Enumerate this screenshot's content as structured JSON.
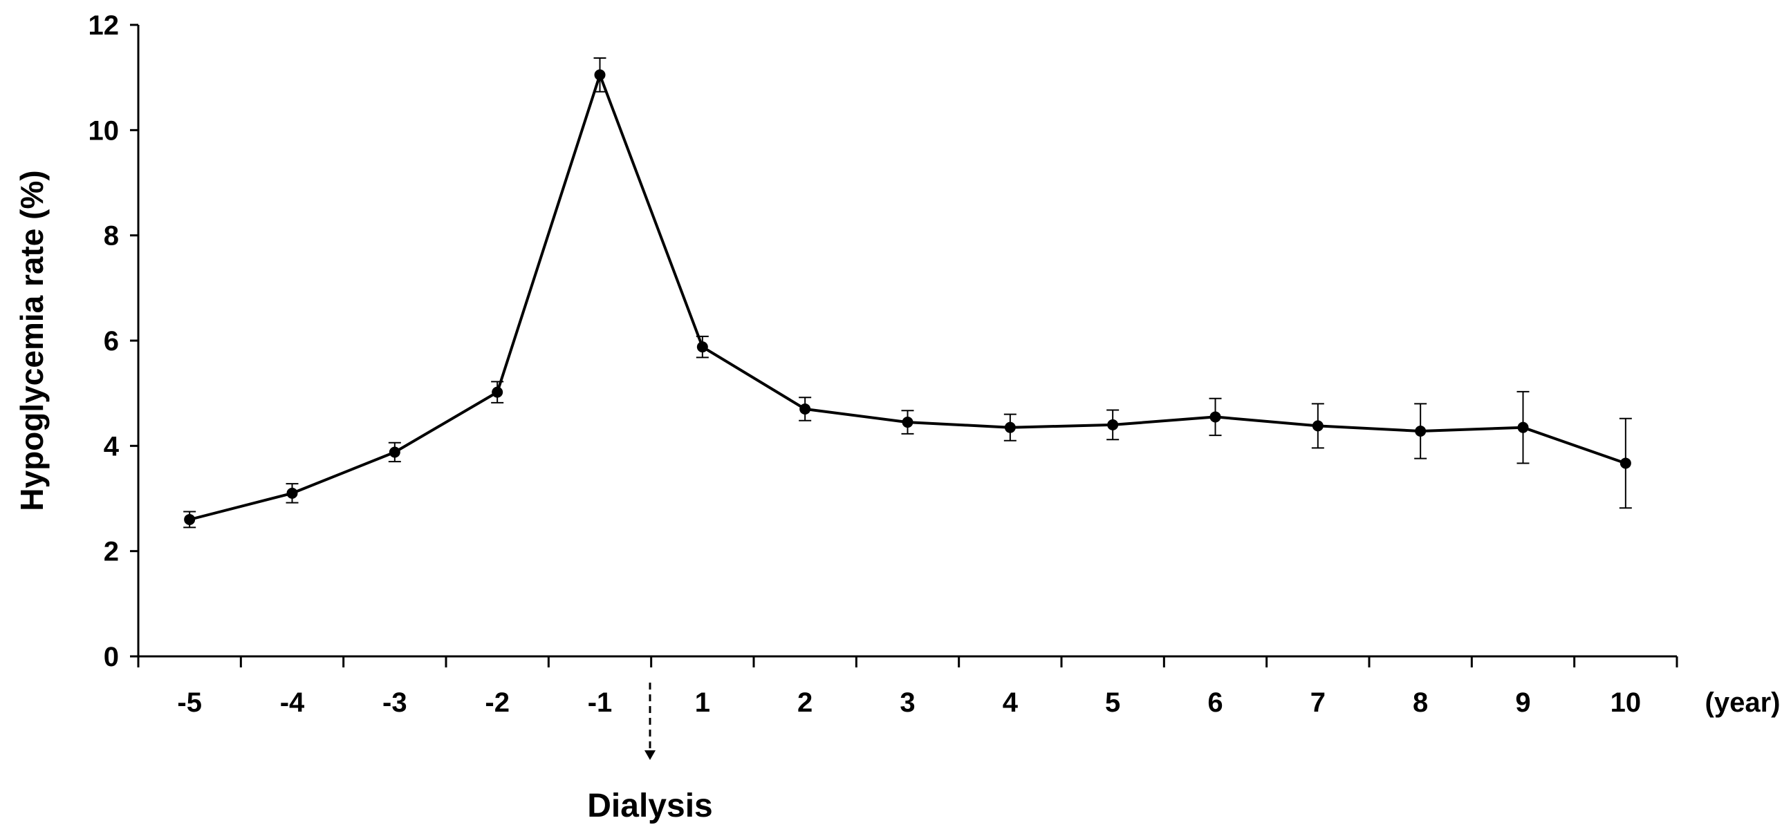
{
  "chart_data": {
    "type": "line",
    "title": "",
    "xlabel": "",
    "ylabel": "Hypoglycemia rate (%)",
    "x_unit_label": "(year)",
    "categories": [
      "-5",
      "-4",
      "-3",
      "-2",
      "-1",
      "1",
      "2",
      "3",
      "4",
      "5",
      "6",
      "7",
      "8",
      "9",
      "10"
    ],
    "series": [
      {
        "values": [
          2.6,
          3.1,
          3.88,
          5.02,
          11.05,
          5.88,
          4.7,
          4.45,
          4.35,
          4.4,
          4.55,
          4.38,
          4.28,
          4.35,
          3.67
        ],
        "error": [
          0.15,
          0.18,
          0.18,
          0.2,
          0.32,
          0.2,
          0.22,
          0.22,
          0.25,
          0.28,
          0.35,
          0.42,
          0.52,
          0.68,
          0.85
        ]
      }
    ],
    "ylim": [
      0,
      12
    ],
    "yticks": [
      0,
      2,
      4,
      6,
      8,
      10,
      12
    ],
    "grid": false,
    "legend": "none",
    "annotation": {
      "text": "Dialysis",
      "arrow": "dashed-down",
      "position": "between -1 and 1"
    },
    "color": "#000000"
  }
}
